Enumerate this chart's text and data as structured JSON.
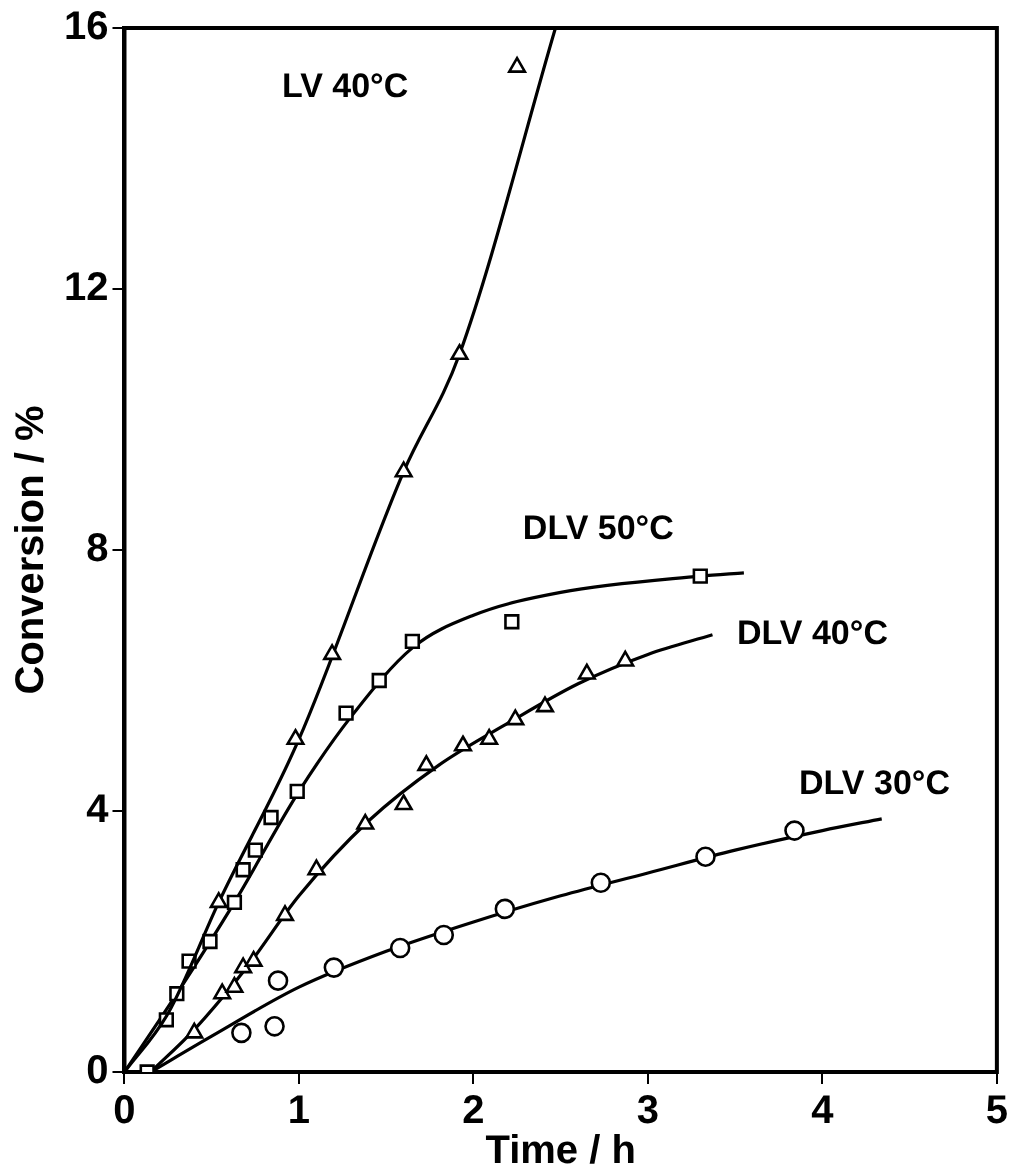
{
  "chart_data": {
    "type": "scatter",
    "xlabel": "Time / h",
    "ylabel": "Conversion / %",
    "xlim": [
      0,
      5
    ],
    "xticks": [
      0,
      1,
      2,
      3,
      4,
      5
    ],
    "ylim": [
      0,
      16
    ],
    "yticks": [
      0,
      4,
      8,
      12,
      16
    ],
    "grid": false,
    "legend": false,
    "series": [
      {
        "name": "LV 40°C",
        "marker": "triangle",
        "color": "#000000",
        "x": [
          0.54,
          0.98,
          1.19,
          1.6,
          1.92,
          2.25
        ],
        "values": [
          2.6,
          5.1,
          6.4,
          9.2,
          11.0,
          15.4
        ]
      },
      {
        "type": "line",
        "marker": "none",
        "color": "#000000",
        "x": [
          0,
          0.25,
          0.54,
          1,
          1.6,
          1.92,
          2.47
        ],
        "values": [
          0,
          0.9,
          2.6,
          5.1,
          9.2,
          11.0,
          16
        ]
      },
      {
        "name": "DLV 50°C",
        "marker": "square",
        "color": "#000000",
        "x": [
          0.13,
          0.24,
          0.3,
          0.37,
          0.49,
          0.63,
          0.68,
          0.75,
          0.84,
          0.99,
          1.27,
          1.46,
          1.65,
          2.22,
          3.3
        ],
        "values": [
          0,
          0.8,
          1.2,
          1.7,
          2.0,
          2.6,
          3.1,
          3.4,
          3.9,
          4.3,
          5.5,
          6.0,
          6.6,
          6.9,
          7.6
        ]
      },
      {
        "type": "line",
        "marker": "none",
        "color": "#000000",
        "x": [
          0,
          0.3,
          0.63,
          1,
          1.3,
          1.65,
          2,
          2.5,
          3.3,
          3.55
        ],
        "values": [
          0,
          1.2,
          2.6,
          4.3,
          5.45,
          6.5,
          7.0,
          7.35,
          7.6,
          7.65
        ]
      },
      {
        "marker": "triangle",
        "color": "#000000",
        "x": [
          0.4,
          0.56,
          0.63,
          0.68,
          0.74,
          0.92,
          1.1,
          1.38,
          1.6,
          1.73,
          1.94,
          2.09,
          2.24,
          2.41,
          2.65,
          2.87
        ],
        "values": [
          0.6,
          1.2,
          1.3,
          1.6,
          1.7,
          2.4,
          3.1,
          3.8,
          4.1,
          4.7,
          5.0,
          5.1,
          5.4,
          5.6,
          6.1,
          6.3
        ]
      },
      {
        "name": "DLV 40°C",
        "type": "line",
        "marker": "none",
        "color": "#000000",
        "x": [
          0.15,
          0.4,
          0.7,
          1,
          1.4,
          1.8,
          2.2,
          2.6,
          3.0,
          3.37
        ],
        "values": [
          0,
          0.65,
          1.6,
          2.7,
          3.85,
          4.7,
          5.35,
          5.95,
          6.4,
          6.7
        ]
      },
      {
        "name": "DLV 30°C",
        "marker": "circle",
        "color": "#000000",
        "x": [
          0.67,
          0.86,
          0.88,
          1.2,
          1.58,
          1.83,
          2.18,
          2.73,
          3.33,
          3.84
        ],
        "values": [
          0.6,
          0.7,
          1.4,
          1.6,
          1.9,
          2.1,
          2.5,
          2.9,
          3.3,
          3.7
        ]
      },
      {
        "type": "line",
        "marker": "none",
        "color": "#000000",
        "x": [
          0.15,
          0.5,
          1,
          1.5,
          2,
          2.5,
          3,
          3.5,
          4,
          4.34
        ],
        "values": [
          0,
          0.55,
          1.3,
          1.85,
          2.3,
          2.7,
          3.05,
          3.4,
          3.7,
          3.88
        ]
      }
    ]
  }
}
